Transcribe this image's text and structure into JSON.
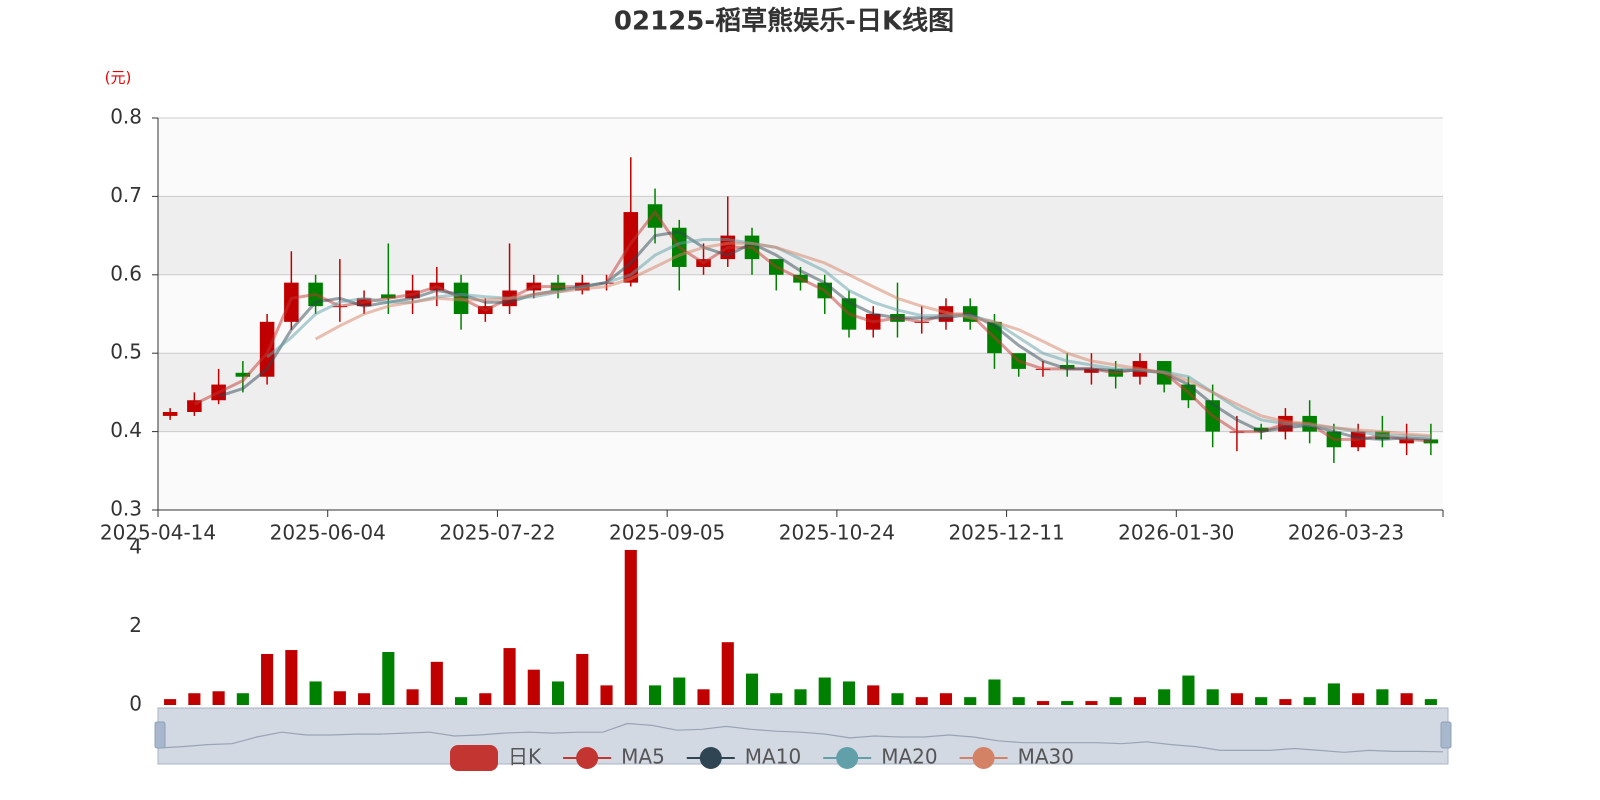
{
  "chart_data": {
    "type": "candlestick",
    "title": "02125-稻草熊娱乐-日K线图",
    "unit": "(元)",
    "categories": [
      "2025-04-14",
      null,
      null,
      null,
      null,
      null,
      null,
      "2025-06-04",
      null,
      null,
      null,
      null,
      null,
      null,
      "2025-07-22",
      null,
      null,
      null,
      null,
      null,
      null,
      "2025-09-05",
      null,
      null,
      null,
      null,
      null,
      null,
      "2025-10-24",
      null,
      null,
      null,
      null,
      null,
      null,
      "2025-12-11",
      null,
      null,
      null,
      null,
      null,
      null,
      "2026-01-30",
      null,
      null,
      null,
      null,
      null,
      null,
      "2026-03-23",
      null,
      null,
      null
    ],
    "ylim": [
      0.3,
      0.8
    ],
    "yticks": [
      0.3,
      0.4,
      0.5,
      0.6,
      0.7,
      0.8
    ],
    "grid": true,
    "up_color": "#c00000",
    "down_color": "#008000",
    "legend": "bottom",
    "series": [
      {
        "name": "日K",
        "color": "#c23531",
        "open": [
          0.42,
          0.425,
          0.44,
          0.475,
          0.47,
          0.54,
          0.59,
          0.56,
          0.56,
          0.575,
          0.57,
          0.58,
          0.59,
          0.55,
          0.56,
          0.58,
          0.59,
          0.58,
          0.59,
          0.59,
          0.69,
          0.66,
          0.61,
          0.62,
          0.65,
          0.62,
          0.6,
          0.59,
          0.57,
          0.53,
          0.55,
          0.54,
          0.54,
          0.56,
          0.54,
          0.5,
          0.48,
          0.485,
          0.475,
          0.48,
          0.47,
          0.49,
          0.46,
          0.44,
          0.4,
          0.405,
          0.4,
          0.42,
          0.4,
          0.38,
          0.4,
          0.385,
          0.39
        ],
        "close": [
          0.425,
          0.44,
          0.46,
          0.47,
          0.54,
          0.59,
          0.56,
          0.56,
          0.57,
          0.57,
          0.58,
          0.59,
          0.55,
          0.56,
          0.58,
          0.59,
          0.58,
          0.59,
          0.59,
          0.68,
          0.66,
          0.61,
          0.62,
          0.65,
          0.62,
          0.6,
          0.59,
          0.57,
          0.53,
          0.55,
          0.54,
          0.54,
          0.56,
          0.54,
          0.5,
          0.48,
          0.48,
          0.48,
          0.48,
          0.47,
          0.49,
          0.46,
          0.44,
          0.4,
          0.4,
          0.4,
          0.42,
          0.4,
          0.38,
          0.4,
          0.39,
          0.39,
          0.385
        ],
        "low": [
          0.415,
          0.42,
          0.435,
          0.45,
          0.46,
          0.53,
          0.55,
          0.54,
          0.55,
          0.55,
          0.55,
          0.56,
          0.53,
          0.54,
          0.55,
          0.57,
          0.57,
          0.575,
          0.58,
          0.585,
          0.64,
          0.58,
          0.6,
          0.61,
          0.6,
          0.58,
          0.58,
          0.55,
          0.52,
          0.52,
          0.52,
          0.525,
          0.53,
          0.53,
          0.48,
          0.47,
          0.47,
          0.47,
          0.46,
          0.455,
          0.46,
          0.45,
          0.43,
          0.38,
          0.375,
          0.39,
          0.39,
          0.385,
          0.36,
          0.375,
          0.38,
          0.37,
          0.37
        ],
        "high": [
          0.43,
          0.45,
          0.48,
          0.49,
          0.55,
          0.63,
          0.6,
          0.62,
          0.58,
          0.64,
          0.6,
          0.61,
          0.6,
          0.57,
          0.64,
          0.6,
          0.6,
          0.6,
          0.6,
          0.75,
          0.71,
          0.67,
          0.64,
          0.7,
          0.66,
          0.62,
          0.61,
          0.6,
          0.58,
          0.56,
          0.59,
          0.56,
          0.57,
          0.57,
          0.55,
          0.5,
          0.49,
          0.5,
          0.5,
          0.49,
          0.5,
          0.49,
          0.47,
          0.46,
          0.42,
          0.41,
          0.43,
          0.44,
          0.41,
          0.41,
          0.42,
          0.41,
          0.41
        ]
      },
      {
        "name": "MA5",
        "color": "#c23531",
        "values": [
          null,
          0.435,
          0.45,
          0.465,
          0.5,
          0.57,
          0.575,
          0.56,
          0.565,
          0.57,
          0.575,
          0.585,
          0.57,
          0.555,
          0.57,
          0.585,
          0.585,
          0.585,
          0.59,
          0.64,
          0.68,
          0.635,
          0.615,
          0.635,
          0.635,
          0.61,
          0.595,
          0.58,
          0.55,
          0.54,
          0.545,
          0.54,
          0.55,
          0.55,
          0.52,
          0.49,
          0.48,
          0.48,
          0.48,
          0.475,
          0.48,
          0.475,
          0.45,
          0.42,
          0.4,
          0.4,
          0.41,
          0.41,
          0.39,
          0.39,
          0.395,
          0.39,
          0.388
        ]
      },
      {
        "name": "MA10",
        "color": "#2f4554",
        "values": [
          null,
          null,
          0.445,
          0.455,
          0.48,
          0.53,
          0.565,
          0.57,
          0.56,
          0.565,
          0.57,
          0.58,
          0.575,
          0.565,
          0.565,
          0.575,
          0.58,
          0.585,
          0.59,
          0.615,
          0.65,
          0.655,
          0.635,
          0.625,
          0.64,
          0.625,
          0.605,
          0.59,
          0.565,
          0.55,
          0.545,
          0.545,
          0.545,
          0.55,
          0.535,
          0.51,
          0.49,
          0.48,
          0.48,
          0.478,
          0.478,
          0.475,
          0.46,
          0.435,
          0.415,
          0.4,
          0.405,
          0.408,
          0.4,
          0.392,
          0.39,
          0.392,
          0.39
        ]
      },
      {
        "name": "MA20",
        "color": "#61a0a8",
        "values": [
          null,
          null,
          null,
          null,
          0.495,
          0.52,
          0.55,
          0.565,
          0.57,
          0.565,
          0.565,
          0.572,
          0.575,
          0.572,
          0.57,
          0.572,
          0.578,
          0.585,
          0.59,
          0.6,
          0.625,
          0.64,
          0.645,
          0.645,
          0.64,
          0.635,
          0.62,
          0.605,
          0.58,
          0.565,
          0.555,
          0.548,
          0.548,
          0.548,
          0.54,
          0.52,
          0.5,
          0.49,
          0.485,
          0.48,
          0.478,
          0.476,
          0.47,
          0.45,
          0.43,
          0.415,
          0.41,
          0.408,
          0.405,
          0.4,
          0.395,
          0.395,
          0.393
        ]
      },
      {
        "name": "MA30",
        "color": "#d48265",
        "values": [
          null,
          null,
          null,
          null,
          null,
          null,
          0.518,
          0.535,
          0.55,
          0.56,
          0.565,
          0.57,
          0.568,
          0.568,
          0.57,
          0.575,
          0.578,
          0.582,
          0.585,
          0.595,
          0.61,
          0.625,
          0.635,
          0.64,
          0.64,
          0.635,
          0.625,
          0.615,
          0.6,
          0.585,
          0.57,
          0.56,
          0.552,
          0.545,
          0.54,
          0.53,
          0.515,
          0.5,
          0.49,
          0.485,
          0.48,
          0.475,
          0.465,
          0.45,
          0.435,
          0.42,
          0.413,
          0.41,
          0.405,
          0.402,
          0.4,
          0.397,
          0.395
        ]
      }
    ],
    "volume": {
      "values": [
        0.15,
        0.3,
        0.35,
        0.3,
        1.3,
        1.4,
        0.6,
        0.35,
        0.3,
        1.35,
        0.4,
        1.1,
        0.2,
        0.3,
        1.45,
        0.9,
        0.6,
        1.3,
        0.5,
        3.95,
        0.5,
        0.7,
        0.4,
        1.6,
        0.8,
        0.3,
        0.4,
        0.7,
        0.6,
        0.5,
        0.3,
        0.2,
        0.3,
        0.2,
        0.65,
        0.2,
        0.1,
        0.1,
        0.1,
        0.2,
        0.2,
        0.4,
        0.75,
        0.4,
        0.3,
        0.2,
        0.15,
        0.2,
        0.55,
        0.3,
        0.4,
        0.3,
        0.15
      ],
      "ylim": [
        0,
        4
      ],
      "yticks": [
        0,
        2,
        4
      ]
    }
  }
}
